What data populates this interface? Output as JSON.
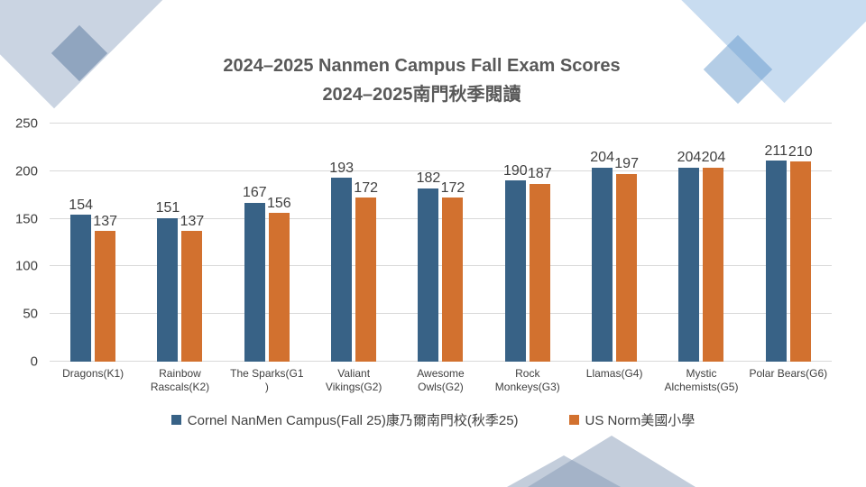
{
  "chart_data": {
    "type": "bar",
    "title_lines": [
      "2024–2025 Nanmen Campus Fall Exam Scores",
      "2024–2025南門秋季閱讀"
    ],
    "title": "2024–2025 Nanmen Campus Fall Exam Scores 2024–2025南門秋季閱讀",
    "categories": [
      "Dragons(K1)",
      "Rainbow Rascals(K2)",
      "The Sparks(G1)",
      "Valiant Vikings(G2)",
      "Awesome Owls(G2)",
      "Rock Monkeys(G3)",
      "Llamas(G4)",
      "Mystic Alchemists(G5)",
      "Polar Bears(G6)"
    ],
    "category_display_lines": [
      [
        "Dragons(K1)"
      ],
      [
        "Rainbow",
        "Rascals(K2)"
      ],
      [
        "The Sparks(G1",
        ")"
      ],
      [
        "Valiant",
        "Vikings(G2)"
      ],
      [
        "Awesome",
        "Owls(G2)"
      ],
      [
        "Rock",
        "Monkeys(G3)"
      ],
      [
        "Llamas(G4)"
      ],
      [
        "Mystic",
        "Alchemists(G5)"
      ],
      [
        "Polar Bears(G6)"
      ]
    ],
    "series": [
      {
        "name": "Cornel NanMen Campus(Fall 25)康乃爾南門校(秋季25)",
        "color": "#386286",
        "values": [
          154,
          151,
          167,
          193,
          182,
          190,
          204,
          204,
          211
        ]
      },
      {
        "name": "US Norm美國小學",
        "color": "#D2712F",
        "values": [
          137,
          137,
          156,
          172,
          172,
          187,
          197,
          204,
          210
        ]
      }
    ],
    "ylim": [
      0,
      250
    ],
    "yticks": [
      0,
      50,
      100,
      150,
      200,
      250
    ],
    "grid": true,
    "data_labels": true,
    "legend_position": "bottom",
    "colors": {
      "grid": "#d9d9d9",
      "title_text": "#595959",
      "axis_text": "#404040",
      "label_text": "#404040"
    }
  }
}
